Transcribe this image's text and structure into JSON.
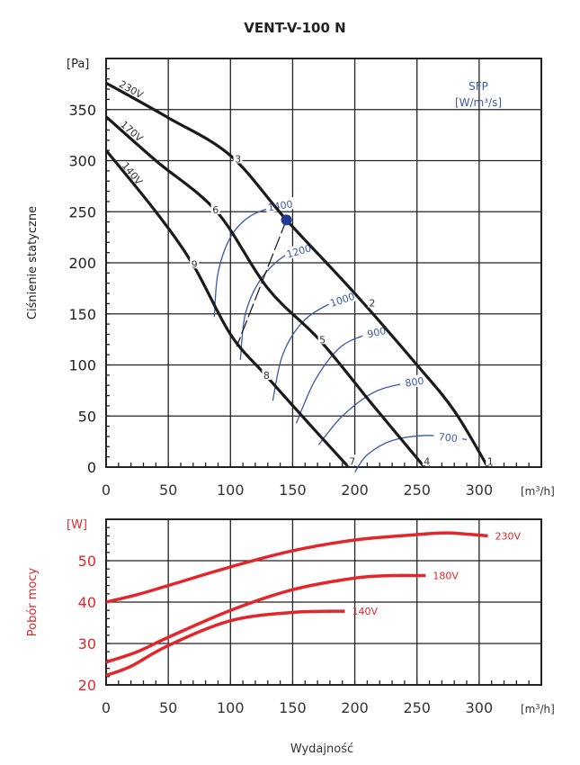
{
  "title": "VENT-V-100 N",
  "xlabel": "Wydajność",
  "colors": {
    "fan": "#1a1a1a",
    "sfp": "#3a5aa8",
    "power": "#e3262b",
    "grid": "#222222",
    "point": "#1f3a93"
  },
  "chart_data": [
    {
      "type": "line",
      "title": "VENT-V-100 N",
      "ylabel": "Ciśnienie statyczne",
      "y_unit": "[Pa]",
      "x_unit": "[m3/h]",
      "xlim": [
        0,
        350
      ],
      "ylim": [
        0,
        400
      ],
      "x_ticks": [
        0,
        50,
        100,
        150,
        200,
        250,
        300
      ],
      "y_ticks": [
        0,
        50,
        100,
        150,
        200,
        250,
        300,
        350
      ],
      "grid": true,
      "sfp_legend": {
        "line1": "SFP",
        "line2": "[W/m³/s]"
      },
      "series": [
        {
          "name": "230V",
          "x": [
            0,
            50,
            100,
            145,
            200,
            250,
            280,
            307
          ],
          "y": [
            376,
            342,
            305,
            242,
            170,
            100,
            55,
            0
          ]
        },
        {
          "name": "170V",
          "x": [
            0,
            40,
            89,
            130,
            172,
            215,
            256
          ],
          "y": [
            343,
            300,
            250,
            175,
            124,
            60,
            0
          ]
        },
        {
          "name": "140V",
          "x": [
            0,
            40,
            70,
            100,
            129,
            165,
            195
          ],
          "y": [
            310,
            250,
            198,
            130,
            89,
            40,
            0
          ]
        }
      ],
      "sfp_curves": [
        {
          "label": "1400",
          "x": [
            87,
            90,
            100,
            115,
            135,
            145
          ],
          "y": [
            147,
            190,
            225,
            245,
            255,
            257
          ]
        },
        {
          "label": "1200",
          "x": [
            108,
            112,
            125,
            145,
            165
          ],
          "y": [
            105,
            150,
            185,
            208,
            215
          ]
        },
        {
          "label": "1000",
          "x": [
            134,
            142,
            158,
            180,
            200
          ],
          "y": [
            65,
            110,
            142,
            160,
            168
          ]
        },
        {
          "label": "900",
          "x": [
            153,
            168,
            188,
            210,
            225
          ],
          "y": [
            43,
            85,
            117,
            130,
            134
          ]
        },
        {
          "label": "800",
          "x": [
            171,
            190,
            215,
            240,
            256
          ],
          "y": [
            22,
            50,
            73,
            82,
            85
          ]
        },
        {
          "label": "700",
          "x": [
            200,
            210,
            230,
            260,
            290
          ],
          "y": [
            -5,
            12,
            26,
            31,
            27
          ]
        }
      ],
      "points": [
        {
          "label": "1",
          "x": 309,
          "y": 5
        },
        {
          "label": "2",
          "x": 214,
          "y": 160
        },
        {
          "label": "3",
          "x": 106,
          "y": 301
        },
        {
          "label": "4",
          "x": 258,
          "y": 5
        },
        {
          "label": "5",
          "x": 174,
          "y": 124
        },
        {
          "label": "6",
          "x": 88,
          "y": 251
        },
        {
          "label": "7",
          "x": 198,
          "y": 5
        },
        {
          "label": "8",
          "x": 129,
          "y": 89
        },
        {
          "label": "9",
          "x": 71,
          "y": 198
        }
      ],
      "operating_point": {
        "x": 145,
        "y": 242
      },
      "system_line": {
        "x": [
          145,
          105
        ],
        "y": [
          242,
          118
        ]
      }
    },
    {
      "type": "line",
      "ylabel": "Pobór mocy",
      "y_unit": "[W]",
      "x_unit": "[m3/h]",
      "xlim": [
        0,
        350
      ],
      "ylim": [
        20,
        60
      ],
      "x_ticks": [
        0,
        50,
        100,
        150,
        200,
        250,
        300
      ],
      "y_ticks": [
        20,
        30,
        40,
        50
      ],
      "grid": true,
      "series": [
        {
          "name": "230V",
          "x": [
            0,
            25,
            50,
            100,
            150,
            200,
            250,
            275,
            307
          ],
          "y": [
            40,
            41.8,
            44,
            48.5,
            52.4,
            55,
            56.3,
            56.7,
            56
          ]
        },
        {
          "name": "180V",
          "x": [
            0,
            25,
            50,
            100,
            150,
            200,
            230,
            257
          ],
          "y": [
            25.5,
            28,
            31.5,
            38,
            43,
            45.8,
            46.4,
            46.4
          ]
        },
        {
          "name": "140V",
          "x": [
            0,
            20,
            50,
            100,
            150,
            192
          ],
          "y": [
            22.3,
            24.5,
            29.5,
            35.5,
            37.5,
            37.8
          ]
        }
      ]
    }
  ]
}
